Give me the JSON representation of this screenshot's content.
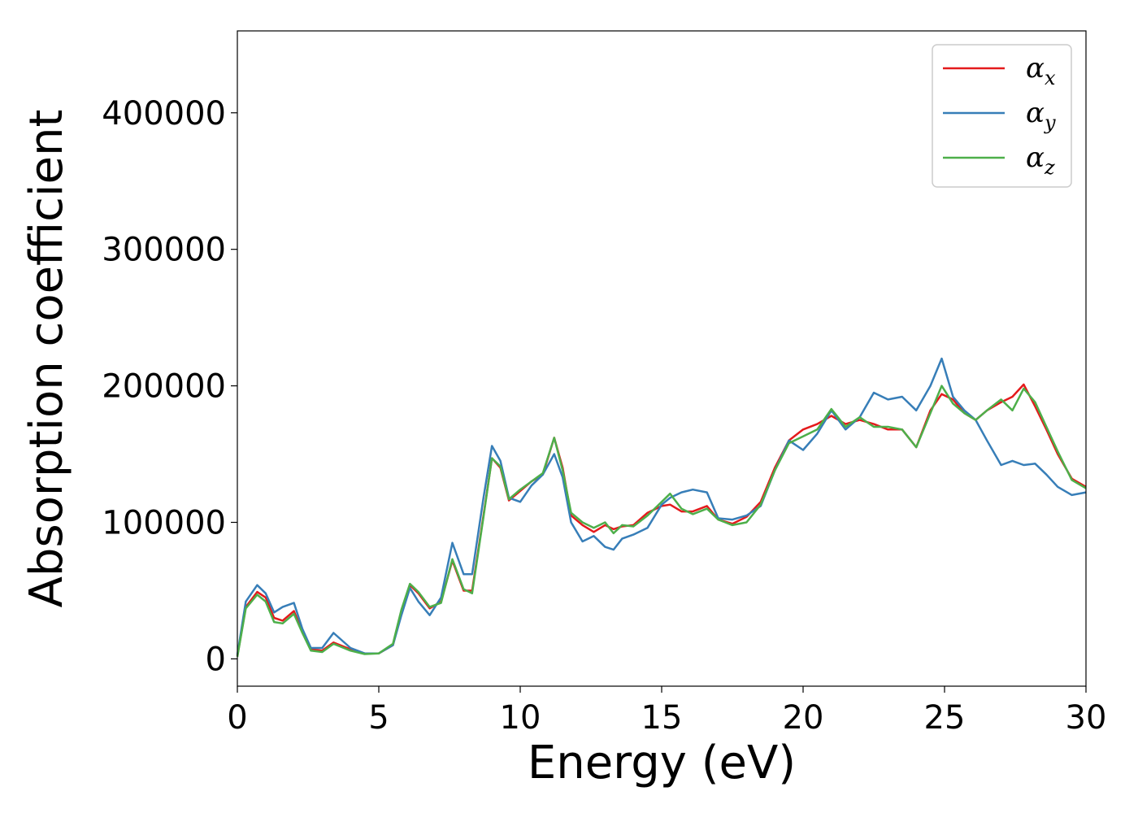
{
  "chart_data": {
    "type": "line",
    "xlabel": "Energy (eV)",
    "ylabel": "Absorption coefficient",
    "xlim": [
      0,
      30
    ],
    "ylim": [
      -20000,
      460000
    ],
    "xticks": [
      "0",
      "5",
      "10",
      "15",
      "20",
      "25",
      "30"
    ],
    "yticks": [
      "0",
      "100000",
      "200000",
      "300000",
      "400000"
    ],
    "grid": false,
    "legend_position": "top-right",
    "series": [
      {
        "name": "α",
        "subscript": "x",
        "color": "#e41a1c",
        "x": [
          0,
          0.3,
          0.7,
          1.0,
          1.3,
          1.6,
          2.0,
          2.3,
          2.6,
          3.0,
          3.4,
          4.0,
          4.5,
          5.0,
          5.5,
          5.8,
          6.1,
          6.4,
          6.8,
          7.2,
          7.6,
          8.0,
          8.3,
          8.7,
          9.0,
          9.3,
          9.6,
          10.0,
          10.4,
          10.8,
          11.2,
          11.5,
          11.8,
          12.2,
          12.6,
          13.0,
          13.3,
          13.6,
          14.0,
          14.5,
          15.0,
          15.3,
          15.7,
          16.1,
          16.6,
          17.0,
          17.5,
          18.0,
          18.5,
          19.0,
          19.5,
          20.0,
          20.5,
          21.0,
          21.5,
          22.0,
          22.5,
          23.0,
          23.5,
          24.0,
          24.5,
          24.9,
          25.3,
          25.7,
          26.1,
          26.5,
          27.0,
          27.4,
          27.8,
          28.2,
          28.6,
          29.0,
          29.5,
          30.0
        ],
        "values": [
          2000,
          38000,
          49000,
          45000,
          30000,
          28000,
          35000,
          20000,
          7000,
          6000,
          12000,
          7000,
          4000,
          4000,
          10000,
          35000,
          54000,
          48000,
          37000,
          42000,
          72000,
          50000,
          50000,
          105000,
          147000,
          140000,
          116000,
          123000,
          130000,
          135000,
          162000,
          140000,
          105000,
          98000,
          93000,
          98000,
          95000,
          97000,
          98000,
          107000,
          112000,
          113000,
          108000,
          108000,
          112000,
          102000,
          99000,
          104000,
          115000,
          140000,
          160000,
          168000,
          172000,
          178000,
          172000,
          175000,
          172000,
          168000,
          168000,
          155000,
          182000,
          194000,
          190000,
          180000,
          175000,
          182000,
          188000,
          192000,
          201000,
          185000,
          168000,
          150000,
          132000,
          126000
        ]
      },
      {
        "name": "α",
        "subscript": "y",
        "color": "#377eb8",
        "x": [
          0,
          0.3,
          0.7,
          1.0,
          1.3,
          1.6,
          2.0,
          2.3,
          2.6,
          3.0,
          3.4,
          4.0,
          4.5,
          5.0,
          5.5,
          5.8,
          6.1,
          6.4,
          6.8,
          7.2,
          7.6,
          8.0,
          8.3,
          8.7,
          9.0,
          9.3,
          9.6,
          10.0,
          10.4,
          10.8,
          11.2,
          11.5,
          11.8,
          12.2,
          12.6,
          13.0,
          13.3,
          13.6,
          14.0,
          14.5,
          15.0,
          15.3,
          15.7,
          16.1,
          16.6,
          17.0,
          17.5,
          18.0,
          18.5,
          19.0,
          19.5,
          20.0,
          20.5,
          21.0,
          21.5,
          22.0,
          22.5,
          23.0,
          23.5,
          24.0,
          24.5,
          24.9,
          25.3,
          25.7,
          26.1,
          26.5,
          27.0,
          27.4,
          27.8,
          28.2,
          28.6,
          29.0,
          29.5,
          30.0
        ],
        "values": [
          3000,
          42000,
          54000,
          48000,
          34000,
          38000,
          41000,
          22000,
          8000,
          8000,
          19000,
          8000,
          4000,
          4000,
          10000,
          32000,
          52000,
          42000,
          32000,
          45000,
          85000,
          62000,
          62000,
          118000,
          156000,
          145000,
          118000,
          115000,
          127000,
          135000,
          150000,
          133000,
          100000,
          86000,
          90000,
          82000,
          80000,
          88000,
          91000,
          96000,
          113000,
          118000,
          122000,
          124000,
          122000,
          103000,
          102000,
          105000,
          112000,
          138000,
          160000,
          153000,
          165000,
          182000,
          168000,
          177000,
          195000,
          190000,
          192000,
          182000,
          200000,
          220000,
          192000,
          182000,
          175000,
          160000,
          142000,
          145000,
          142000,
          143000,
          135000,
          126000,
          120000,
          122000
        ]
      },
      {
        "name": "α",
        "subscript": "z",
        "color": "#4daf4a",
        "x": [
          0,
          0.3,
          0.7,
          1.0,
          1.3,
          1.6,
          2.0,
          2.3,
          2.6,
          3.0,
          3.4,
          4.0,
          4.5,
          5.0,
          5.5,
          5.8,
          6.1,
          6.4,
          6.8,
          7.2,
          7.6,
          8.0,
          8.3,
          8.7,
          9.0,
          9.3,
          9.6,
          10.0,
          10.4,
          10.8,
          11.2,
          11.5,
          11.8,
          12.2,
          12.6,
          13.0,
          13.3,
          13.6,
          14.0,
          14.5,
          15.0,
          15.3,
          15.7,
          16.1,
          16.6,
          17.0,
          17.5,
          18.0,
          18.5,
          19.0,
          19.5,
          20.0,
          20.5,
          21.0,
          21.5,
          22.0,
          22.5,
          23.0,
          23.5,
          24.0,
          24.5,
          24.9,
          25.3,
          25.7,
          26.1,
          26.5,
          27.0,
          27.4,
          27.8,
          28.2,
          28.6,
          29.0,
          29.5,
          30.0
        ],
        "values": [
          1500,
          37000,
          47000,
          42000,
          27000,
          26000,
          33000,
          19000,
          6000,
          5000,
          11000,
          6000,
          3500,
          4000,
          11000,
          36000,
          55000,
          49000,
          38000,
          41000,
          73000,
          51000,
          48000,
          104000,
          147000,
          141000,
          117000,
          124000,
          130000,
          136000,
          162000,
          138000,
          107000,
          100000,
          96000,
          100000,
          92000,
          98000,
          97000,
          105000,
          115000,
          121000,
          110000,
          106000,
          110000,
          102000,
          98000,
          100000,
          113000,
          138000,
          158000,
          163000,
          168000,
          183000,
          170000,
          177000,
          170000,
          170000,
          168000,
          155000,
          180000,
          200000,
          187000,
          180000,
          175000,
          182000,
          190000,
          182000,
          198000,
          188000,
          170000,
          152000,
          131000,
          125000
        ]
      }
    ]
  }
}
